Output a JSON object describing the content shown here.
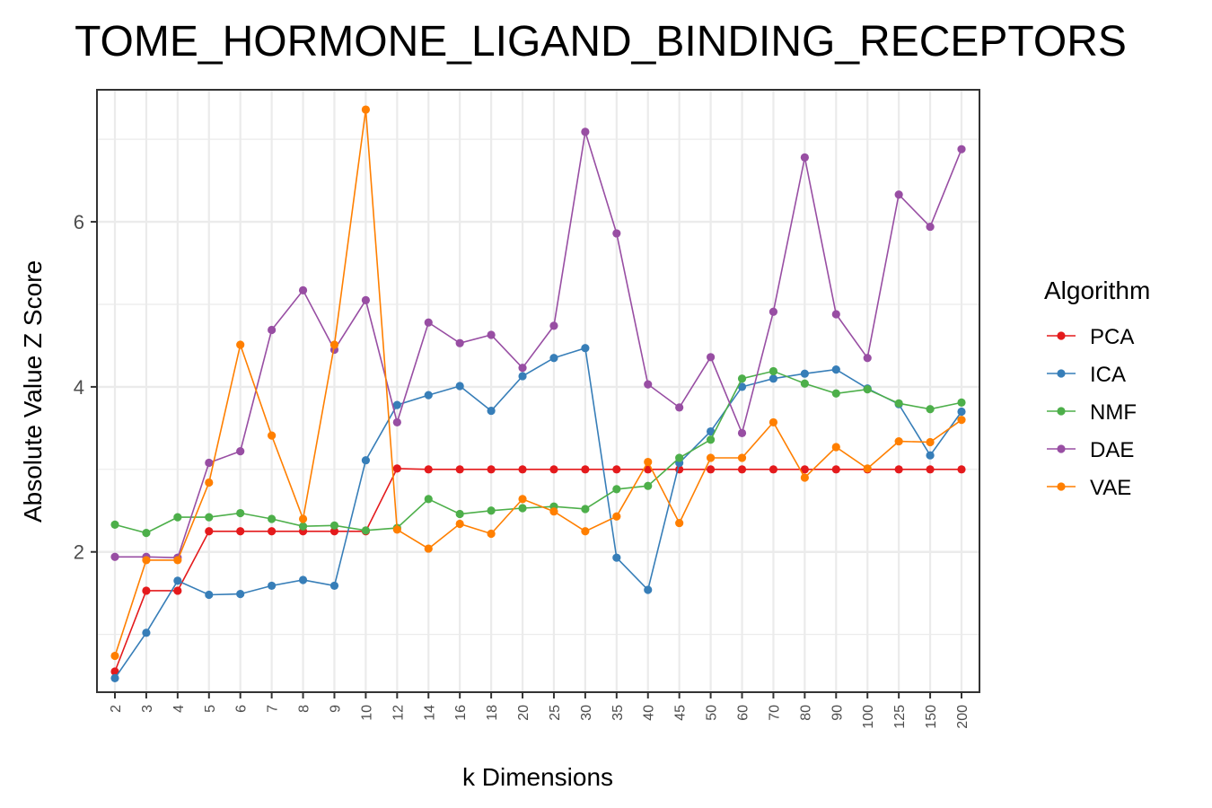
{
  "chart_data": {
    "type": "line",
    "title": "TOME_HORMONE_LIGAND_BINDING_RECEPTORS",
    "xlabel": "k Dimensions",
    "ylabel": "Absolute Value Z Score",
    "categories": [
      "2",
      "3",
      "4",
      "5",
      "6",
      "7",
      "8",
      "9",
      "10",
      "12",
      "14",
      "16",
      "18",
      "20",
      "25",
      "30",
      "35",
      "40",
      "45",
      "50",
      "60",
      "70",
      "80",
      "90",
      "100",
      "125",
      "150",
      "200"
    ],
    "ylim": [
      0.3,
      7.6
    ],
    "yticks": [
      2,
      4,
      6
    ],
    "grid": true,
    "legend": {
      "title": "Algorithm",
      "position": "right"
    },
    "series": [
      {
        "name": "PCA",
        "color": "#e41a1c",
        "values": [
          0.55,
          1.53,
          1.53,
          2.25,
          2.25,
          2.25,
          2.25,
          2.25,
          2.25,
          3.01,
          3.0,
          3.0,
          3.0,
          3.0,
          3.0,
          3.0,
          3.0,
          3.0,
          3.0,
          3.0,
          3.0,
          3.0,
          3.0,
          3.0,
          3.0,
          3.0,
          3.0,
          3.0
        ]
      },
      {
        "name": "ICA",
        "color": "#377eb8",
        "values": [
          0.47,
          1.02,
          1.65,
          1.48,
          1.49,
          1.59,
          1.66,
          1.59,
          3.11,
          3.78,
          3.9,
          4.01,
          3.71,
          4.13,
          4.35,
          4.47,
          1.93,
          1.54,
          3.08,
          3.46,
          4.0,
          4.1,
          4.16,
          4.21,
          3.98,
          3.79,
          3.17,
          3.7
        ]
      },
      {
        "name": "NMF",
        "color": "#4daf4a",
        "values": [
          2.33,
          2.23,
          2.42,
          2.42,
          2.47,
          2.4,
          2.31,
          2.32,
          2.26,
          2.29,
          2.64,
          2.46,
          2.5,
          2.53,
          2.55,
          2.52,
          2.76,
          2.8,
          3.14,
          3.36,
          4.1,
          4.19,
          4.04,
          3.92,
          3.97,
          3.8,
          3.73,
          3.81
        ]
      },
      {
        "name": "DAE",
        "color": "#984ea3",
        "values": [
          1.94,
          1.94,
          1.93,
          3.08,
          3.22,
          4.69,
          5.17,
          4.45,
          5.05,
          3.57,
          4.78,
          4.53,
          4.63,
          4.23,
          4.74,
          7.09,
          5.86,
          4.03,
          3.75,
          4.36,
          3.44,
          4.91,
          6.78,
          4.88,
          4.35,
          6.33,
          5.94,
          6.88
        ]
      },
      {
        "name": "VAE",
        "color": "#ff7f00",
        "values": [
          0.74,
          1.9,
          1.9,
          2.84,
          4.51,
          3.41,
          2.4,
          4.51,
          7.36,
          2.27,
          2.04,
          2.34,
          2.22,
          2.64,
          2.49,
          2.25,
          2.43,
          3.09,
          2.35,
          3.14,
          3.14,
          3.57,
          2.9,
          3.27,
          3.01,
          3.34,
          3.33,
          3.6
        ]
      }
    ]
  }
}
